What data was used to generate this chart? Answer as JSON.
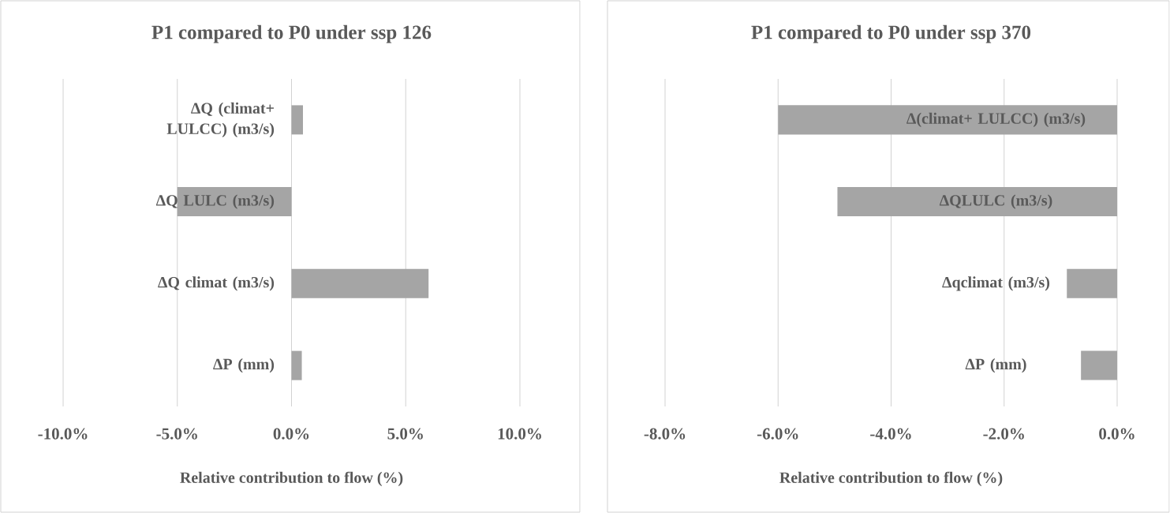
{
  "chart_data": [
    {
      "type": "bar",
      "orientation": "horizontal",
      "title": "P1 compared to P0 under ssp 126",
      "xlabel": "Relative contribution to flow (%)",
      "categories": [
        "ΔQ (climat+ LULCC) (m3/s)",
        "ΔQ LULC (m3/s)",
        "ΔQ climat (m3/s)",
        "ΔP (mm)"
      ],
      "values": [
        0.5,
        -5.0,
        6.0,
        0.45
      ],
      "color": "#a5a5a5",
      "grid": "x",
      "xlim": [
        -10,
        10
      ],
      "xticks": [
        {
          "value": -10,
          "label": "-10.0%"
        },
        {
          "value": -5,
          "label": "-5.0%"
        },
        {
          "value": 0,
          "label": "0.0%"
        },
        {
          "value": 5,
          "label": "5.0%"
        },
        {
          "value": 10,
          "label": "10.0%"
        }
      ]
    },
    {
      "type": "bar",
      "orientation": "horizontal",
      "title": "P1 compared to P0 under ssp 370",
      "xlabel": "Relative contribution to flow (%)",
      "categories": [
        "Δ(climat+ LULCC) (m3/s)",
        "ΔQLULC (m3/s)",
        "Δqclimat (m3/s)",
        "ΔP (mm)"
      ],
      "values": [
        -6.0,
        -4.95,
        -0.89,
        -0.64
      ],
      "color": "#a5a5a5",
      "grid": "x",
      "xlim": [
        -8,
        0
      ],
      "xticks": [
        {
          "value": -8,
          "label": "-8.0%"
        },
        {
          "value": -6,
          "label": "-6.0%"
        },
        {
          "value": -4,
          "label": "-4.0%"
        },
        {
          "value": -2,
          "label": "-2.0%"
        },
        {
          "value": 0,
          "label": "0.0%"
        }
      ]
    }
  ]
}
